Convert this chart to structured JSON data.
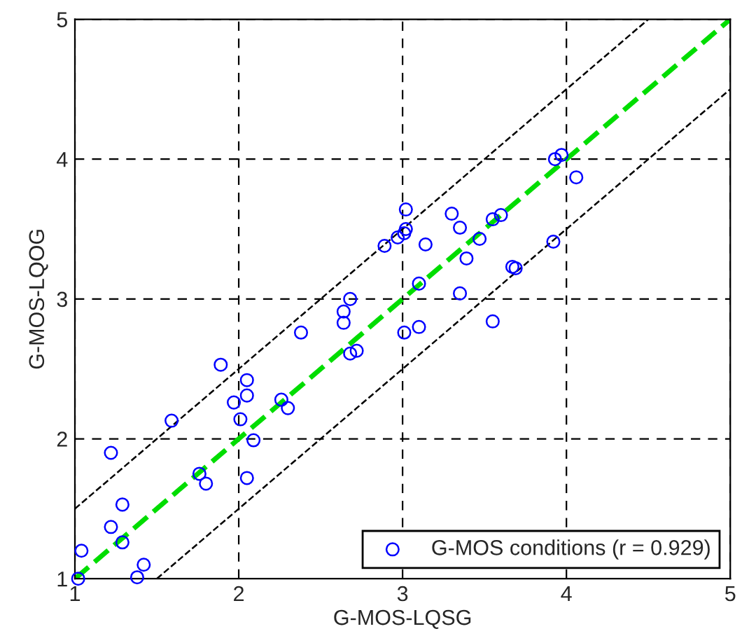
{
  "chart_data": {
    "type": "scatter",
    "xlabel": "G-MOS-LQSG",
    "ylabel": "G-MOS-LQOG",
    "xlim": [
      1,
      5
    ],
    "ylim": [
      1,
      5
    ],
    "xticks": [
      1,
      2,
      3,
      4,
      5
    ],
    "yticks": [
      1,
      2,
      3,
      4,
      5
    ],
    "grid": true,
    "legend": "bottom right",
    "series": [
      {
        "name": "G-MOS conditions (r = 0.929)",
        "color": "#0000ff",
        "marker": "circle",
        "x": [
          1.02,
          1.04,
          1.22,
          1.22,
          1.29,
          1.29,
          1.38,
          1.42,
          1.59,
          1.76,
          1.8,
          1.89,
          1.97,
          2.01,
          2.05,
          2.05,
          2.05,
          2.09,
          2.26,
          2.3,
          2.38,
          2.64,
          2.64,
          2.68,
          2.68,
          2.72,
          2.89,
          2.97,
          3.02,
          3.01,
          3.02,
          3.01,
          3.1,
          3.1,
          3.14,
          3.3,
          3.35,
          3.35,
          3.39,
          3.47,
          3.55,
          3.55,
          3.6,
          3.67,
          3.69,
          3.92,
          3.93,
          3.97,
          4.06
        ],
        "values": [
          1.0,
          1.2,
          1.9,
          1.37,
          1.53,
          1.26,
          1.01,
          1.1,
          2.13,
          1.75,
          1.68,
          2.53,
          2.26,
          2.14,
          2.42,
          2.31,
          1.72,
          1.99,
          2.28,
          2.22,
          2.76,
          2.91,
          2.83,
          3.0,
          2.61,
          2.63,
          3.38,
          3.44,
          3.64,
          3.47,
          3.5,
          2.76,
          3.11,
          2.8,
          3.39,
          3.61,
          3.51,
          3.04,
          3.29,
          3.43,
          2.84,
          3.57,
          3.6,
          3.23,
          3.22,
          3.41,
          4.0,
          4.03,
          3.87
        ]
      },
      {
        "type": "line",
        "color": "#00dd00",
        "line_style": "dashed",
        "marker": "none",
        "x": [
          1,
          5
        ],
        "values": [
          1,
          5
        ]
      },
      {
        "type": "line",
        "color": "#000000",
        "line_style": "dashed",
        "marker": "none",
        "x": [
          1,
          4.5
        ],
        "values": [
          1.5,
          5
        ]
      },
      {
        "type": "line",
        "color": "#000000",
        "line_style": "dashed",
        "marker": "none",
        "x": [
          1.5,
          5
        ],
        "values": [
          1,
          4.5
        ]
      }
    ]
  }
}
